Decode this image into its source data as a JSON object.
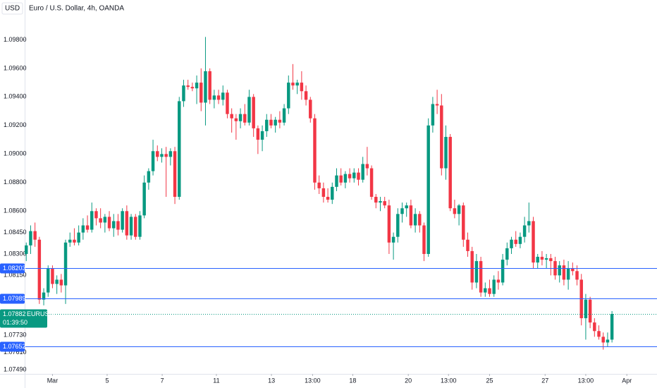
{
  "chart_data": {
    "type": "candlestick",
    "title": "Euro / U.S. Dollar, 4h, OANDA",
    "currency": "USD",
    "up_color": "#089981",
    "down_color": "#f23645",
    "grid": false,
    "ylim": [
      1.0746,
      1.0997
    ],
    "yticks": [
      {
        "value": 1.098,
        "label": "1.09800"
      },
      {
        "value": 1.096,
        "label": "1.09600"
      },
      {
        "value": 1.094,
        "label": "1.09400"
      },
      {
        "value": 1.092,
        "label": "1.09200"
      },
      {
        "value": 1.09,
        "label": "1.09000"
      },
      {
        "value": 1.088,
        "label": "1.08800"
      },
      {
        "value": 1.086,
        "label": "1.08600"
      },
      {
        "value": 1.0845,
        "label": "1.08450"
      },
      {
        "value": 1.083,
        "label": "1.08300"
      },
      {
        "value": 1.0815,
        "label": "1.08150"
      },
      {
        "value": 1.0773,
        "label": "1.07730"
      },
      {
        "value": 1.0761,
        "label": "1.07610"
      },
      {
        "value": 1.0749,
        "label": "1.07490"
      }
    ],
    "xlim": [
      -0.2,
      144.3
    ],
    "xticks": [
      {
        "value": 6,
        "label": "Mar"
      },
      {
        "value": 18.5,
        "label": "5"
      },
      {
        "value": 31.1,
        "label": "7"
      },
      {
        "value": 43.5,
        "label": "11"
      },
      {
        "value": 56.1,
        "label": "13"
      },
      {
        "value": 65.5,
        "label": "13:00"
      },
      {
        "value": 74.7,
        "label": "18"
      },
      {
        "value": 87.4,
        "label": "20"
      },
      {
        "value": 96.6,
        "label": "13:00"
      },
      {
        "value": 106,
        "label": "25"
      },
      {
        "value": 118.7,
        "label": "27"
      },
      {
        "value": 128,
        "label": "13:00"
      },
      {
        "value": 137.4,
        "label": "Apr"
      }
    ],
    "levels": [
      {
        "value": 1.08203,
        "color": "#2962ff"
      },
      {
        "value": 1.07989,
        "color": "#2962ff"
      },
      {
        "value": 1.07652,
        "color": "#2962ff"
      }
    ],
    "last_price": {
      "value": 1.07882,
      "symbol": "EURUSD",
      "countdown": "01:39:50",
      "color": "#089981"
    },
    "candles": [
      [
        1.083,
        1.0838,
        1.0825,
        1.0836
      ],
      [
        1.0836,
        1.085,
        1.083,
        1.0846
      ],
      [
        1.0846,
        1.0852,
        1.0835,
        1.084
      ],
      [
        1.084,
        1.0842,
        1.0795,
        1.0798
      ],
      [
        1.0798,
        1.0806,
        1.0794,
        1.0803
      ],
      [
        1.0803,
        1.0822,
        1.08,
        1.082
      ],
      [
        1.082,
        1.0822,
        1.0806,
        1.0809
      ],
      [
        1.0809,
        1.0815,
        1.0802,
        1.0812
      ],
      [
        1.0812,
        1.0816,
        1.0803,
        1.0808
      ],
      [
        1.0808,
        1.084,
        1.0795,
        1.0838
      ],
      [
        1.0838,
        1.0845,
        1.0835,
        1.084
      ],
      [
        1.084,
        1.0848,
        1.0836,
        1.0838
      ],
      [
        1.0838,
        1.085,
        1.0836,
        1.0845
      ],
      [
        1.0845,
        1.0855,
        1.084,
        1.085
      ],
      [
        1.085,
        1.0857,
        1.0845,
        1.0847
      ],
      [
        1.0847,
        1.0866,
        1.0845,
        1.086
      ],
      [
        1.086,
        1.0862,
        1.085,
        1.0855
      ],
      [
        1.0855,
        1.0862,
        1.0848,
        1.0852
      ],
      [
        1.0852,
        1.0858,
        1.0845,
        1.0856
      ],
      [
        1.0856,
        1.086,
        1.0846,
        1.0848
      ],
      [
        1.0848,
        1.0858,
        1.0842,
        1.0853
      ],
      [
        1.0853,
        1.0858,
        1.0843,
        1.0847
      ],
      [
        1.0847,
        1.0862,
        1.0845,
        1.086
      ],
      [
        1.086,
        1.0864,
        1.084,
        1.0843
      ],
      [
        1.0843,
        1.0858,
        1.084,
        1.0856
      ],
      [
        1.0856,
        1.0858,
        1.084,
        1.0842
      ],
      [
        1.0842,
        1.086,
        1.084,
        1.0857
      ],
      [
        1.0857,
        1.0885,
        1.0855,
        1.088
      ],
      [
        1.088,
        1.089,
        1.0875,
        1.0888
      ],
      [
        1.0888,
        1.091,
        1.0885,
        1.0902
      ],
      [
        1.0902,
        1.0906,
        1.0895,
        1.0898
      ],
      [
        1.0898,
        1.0904,
        1.0894,
        1.09
      ],
      [
        1.09,
        1.0905,
        1.087,
        1.0898
      ],
      [
        1.0898,
        1.0904,
        1.0892,
        1.0902
      ],
      [
        1.0902,
        1.0905,
        1.0865,
        1.087
      ],
      [
        1.087,
        1.094,
        1.0868,
        1.0937
      ],
      [
        1.0937,
        1.0952,
        1.0933,
        1.0948
      ],
      [
        1.0948,
        1.0952,
        1.0945,
        1.0947
      ],
      [
        1.0947,
        1.095,
        1.0944,
        1.0946
      ],
      [
        1.0946,
        1.0955,
        1.0935,
        1.095
      ],
      [
        1.095,
        1.096,
        1.093,
        1.0936
      ],
      [
        1.0936,
        1.0982,
        1.092,
        1.0958
      ],
      [
        1.0958,
        1.096,
        1.0935,
        1.0938
      ],
      [
        1.0938,
        1.0945,
        1.0932,
        1.0941
      ],
      [
        1.0941,
        1.0945,
        1.0935,
        1.0938
      ],
      [
        1.0938,
        1.0948,
        1.0934,
        1.0943
      ],
      [
        1.0943,
        1.0945,
        1.0925,
        1.0928
      ],
      [
        1.0928,
        1.0932,
        1.0915,
        1.0925
      ],
      [
        1.0925,
        1.0928,
        1.091,
        1.0923
      ],
      [
        1.0923,
        1.0932,
        1.0918,
        1.0928
      ],
      [
        1.0928,
        1.0935,
        1.092,
        1.0922
      ],
      [
        1.0922,
        1.0945,
        1.092,
        1.094
      ],
      [
        1.094,
        1.0942,
        1.0912,
        1.0918
      ],
      [
        1.0918,
        1.092,
        1.09,
        1.091
      ],
      [
        1.091,
        1.092,
        1.0902,
        1.0916
      ],
      [
        1.0916,
        1.0928,
        1.0912,
        1.0924
      ],
      [
        1.0924,
        1.0928,
        1.0918,
        1.092
      ],
      [
        1.092,
        1.0926,
        1.0915,
        1.0924
      ],
      [
        1.0924,
        1.093,
        1.0918,
        1.0922
      ],
      [
        1.0922,
        1.0935,
        1.092,
        1.0932
      ],
      [
        1.0932,
        1.0955,
        1.0928,
        1.095
      ],
      [
        1.095,
        1.0963,
        1.0945,
        1.0948
      ],
      [
        1.0948,
        1.0952,
        1.0942,
        1.095
      ],
      [
        1.095,
        1.0958,
        1.0938,
        1.0944
      ],
      [
        1.0944,
        1.0948,
        1.0934,
        1.0938
      ],
      [
        1.0938,
        1.094,
        1.0922,
        1.0925
      ],
      [
        1.0925,
        1.0928,
        1.0875,
        1.088
      ],
      [
        1.088,
        1.0885,
        1.0872,
        1.0876
      ],
      [
        1.0876,
        1.088,
        1.0866,
        1.087
      ],
      [
        1.087,
        1.0876,
        1.0866,
        1.0868
      ],
      [
        1.0868,
        1.088,
        1.0865,
        1.0877
      ],
      [
        1.0877,
        1.089,
        1.0874,
        1.0885
      ],
      [
        1.0885,
        1.089,
        1.0878,
        1.088
      ],
      [
        1.088,
        1.0888,
        1.0876,
        1.0886
      ],
      [
        1.0886,
        1.089,
        1.088,
        1.0883
      ],
      [
        1.0883,
        1.089,
        1.088,
        1.0887
      ],
      [
        1.0887,
        1.089,
        1.0878,
        1.0882
      ],
      [
        1.0882,
        1.0898,
        1.088,
        1.0893
      ],
      [
        1.0893,
        1.0905,
        1.0885,
        1.089
      ],
      [
        1.089,
        1.0892,
        1.0868,
        1.087
      ],
      [
        1.087,
        1.0872,
        1.0862,
        1.0866
      ],
      [
        1.0866,
        1.087,
        1.086,
        1.0867
      ],
      [
        1.0867,
        1.087,
        1.0862,
        1.0864
      ],
      [
        1.0864,
        1.0868,
        1.083,
        1.0838
      ],
      [
        1.0838,
        1.0845,
        1.0826,
        1.0842
      ],
      [
        1.0842,
        1.0862,
        1.0838,
        1.0858
      ],
      [
        1.0858,
        1.0866,
        1.0852,
        1.0862
      ],
      [
        1.0862,
        1.0866,
        1.0856,
        1.0864
      ],
      [
        1.0864,
        1.0868,
        1.0848,
        1.085
      ],
      [
        1.085,
        1.0862,
        1.0845,
        1.0858
      ],
      [
        1.0858,
        1.086,
        1.0845,
        1.085
      ],
      [
        1.085,
        1.0852,
        1.0825,
        1.083
      ],
      [
        1.083,
        1.0925,
        1.0828,
        1.092
      ],
      [
        1.092,
        1.094,
        1.0915,
        1.0935
      ],
      [
        1.0935,
        1.0945,
        1.0928,
        1.0934
      ],
      [
        1.0934,
        1.0942,
        1.0885,
        1.089
      ],
      [
        1.089,
        1.092,
        1.0882,
        1.0912
      ],
      [
        1.0912,
        1.0914,
        1.086,
        1.0862
      ],
      [
        1.0862,
        1.0868,
        1.0855,
        1.0858
      ],
      [
        1.0858,
        1.0865,
        1.085,
        1.0864
      ],
      [
        1.0864,
        1.0866,
        1.0835,
        1.084
      ],
      [
        1.084,
        1.0845,
        1.0828,
        1.0832
      ],
      [
        1.0832,
        1.0835,
        1.0805,
        1.081
      ],
      [
        1.081,
        1.083,
        1.0806,
        1.0825
      ],
      [
        1.0825,
        1.0828,
        1.08,
        1.0803
      ],
      [
        1.0803,
        1.081,
        1.08,
        1.0806
      ],
      [
        1.0806,
        1.0812,
        1.08,
        1.0802
      ],
      [
        1.0802,
        1.0815,
        1.08,
        1.0812
      ],
      [
        1.0812,
        1.0818,
        1.0805,
        1.081
      ],
      [
        1.081,
        1.083,
        1.0808,
        1.0826
      ],
      [
        1.0826,
        1.0838,
        1.0822,
        1.0834
      ],
      [
        1.0834,
        1.0842,
        1.083,
        1.084
      ],
      [
        1.084,
        1.0846,
        1.0835,
        1.0837
      ],
      [
        1.0837,
        1.0845,
        1.0834,
        1.0842
      ],
      [
        1.0842,
        1.0856,
        1.0838,
        1.085
      ],
      [
        1.085,
        1.0866,
        1.0845,
        1.0853
      ],
      [
        1.0853,
        1.0856,
        1.082,
        1.0824
      ],
      [
        1.0824,
        1.083,
        1.082,
        1.0828
      ],
      [
        1.0828,
        1.0832,
        1.0822,
        1.0826
      ],
      [
        1.0826,
        1.083,
        1.082,
        1.0827
      ],
      [
        1.0827,
        1.083,
        1.0815,
        1.0825
      ],
      [
        1.0825,
        1.0828,
        1.0812,
        1.0815
      ],
      [
        1.0815,
        1.0825,
        1.081,
        1.0822
      ],
      [
        1.0822,
        1.0826,
        1.0808,
        1.0812
      ],
      [
        1.0812,
        1.0825,
        1.0805,
        1.082
      ],
      [
        1.082,
        1.0824,
        1.0815,
        1.0818
      ],
      [
        1.0818,
        1.0822,
        1.0808,
        1.0812
      ],
      [
        1.0812,
        1.0816,
        1.078,
        1.0785
      ],
      [
        1.0785,
        1.0802,
        1.077,
        1.0798
      ],
      [
        1.0798,
        1.08,
        1.0778,
        1.0782
      ],
      [
        1.0782,
        1.0785,
        1.0772,
        1.0776
      ],
      [
        1.0776,
        1.078,
        1.077,
        1.0772
      ],
      [
        1.0772,
        1.0775,
        1.0763,
        1.0768
      ],
      [
        1.0768,
        1.0775,
        1.0765,
        1.077
      ],
      [
        1.077,
        1.079,
        1.0768,
        1.0788
      ]
    ]
  }
}
